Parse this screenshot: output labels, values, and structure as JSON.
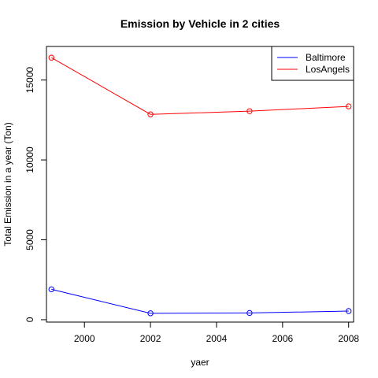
{
  "chart_data": {
    "type": "line",
    "title": "Emission by Vehicle in 2 cities",
    "xlabel": "yaer",
    "ylabel": "Total Emission in a year (Ton)",
    "x": [
      1999,
      2002,
      2005,
      2008
    ],
    "xlim": [
      1998.85,
      2008.15
    ],
    "ylim": [
      -150,
      17100
    ],
    "xticks": [
      2000,
      2002,
      2004,
      2006,
      2008
    ],
    "yticks": [
      0,
      5000,
      10000,
      15000
    ],
    "grid": false,
    "legend_position": "top-right",
    "series": [
      {
        "name": "Baltimore",
        "color": "#0000ff",
        "values": [
          1900,
          400,
          420,
          540
        ]
      },
      {
        "name": "LosAngels",
        "color": "#ff0000",
        "values": [
          16400,
          12850,
          13050,
          13350
        ]
      }
    ]
  }
}
